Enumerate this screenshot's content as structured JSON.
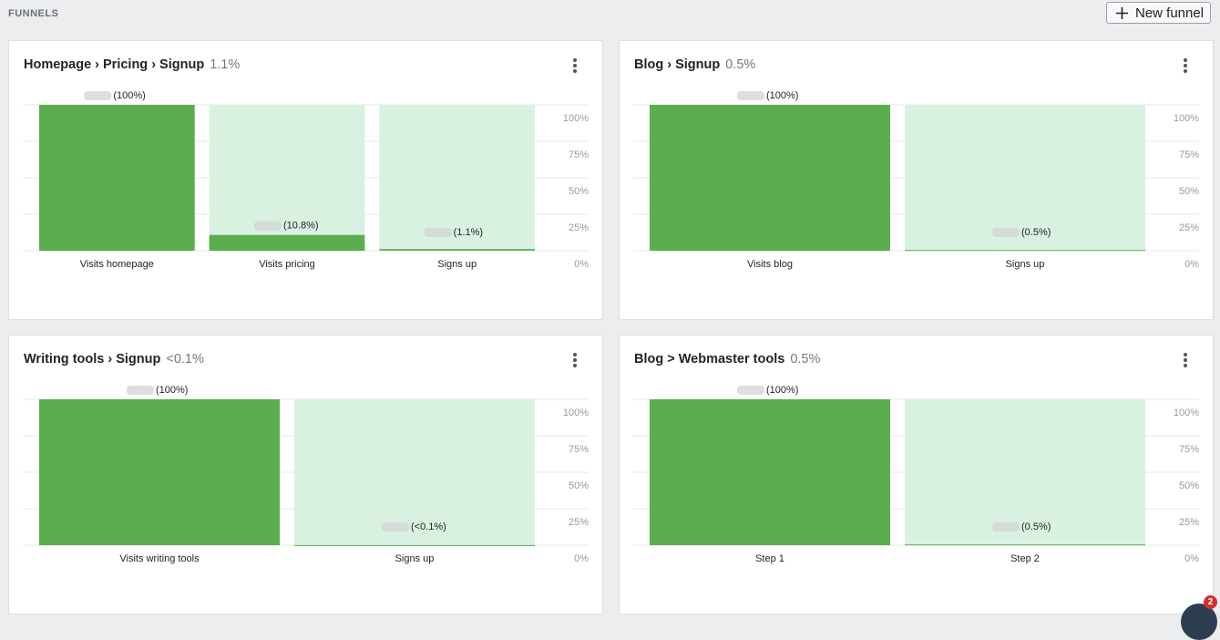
{
  "header": {
    "title": "FUNNELS",
    "button": "New funnel"
  },
  "badge": "2",
  "chart_data": [
    {
      "type": "bar",
      "title": "Homepage › Pricing › Signup",
      "subtitle": "1.1%",
      "categories": [
        "Visits homepage",
        "Visits pricing",
        "Signs up"
      ],
      "values": [
        100,
        10.8,
        1.1
      ],
      "value_labels": [
        "(100%)",
        "(10.8%)",
        "(1.1%)"
      ],
      "color": "#5aae4e",
      "track_color": "#d8f1e1",
      "ylim": [
        0,
        100
      ],
      "yticks": [
        {
          "value": 0,
          "label": "0%"
        },
        {
          "value": 25,
          "label": "25%"
        },
        {
          "value": 50,
          "label": "50%"
        },
        {
          "value": 75,
          "label": "75%"
        },
        {
          "value": 100,
          "label": "100%"
        }
      ],
      "grid": true
    },
    {
      "type": "bar",
      "title": "Blog › Signup",
      "subtitle": "0.5%",
      "categories": [
        "Visits blog",
        "Signs up"
      ],
      "values": [
        100,
        0.5
      ],
      "value_labels": [
        "(100%)",
        "(0.5%)"
      ],
      "color": "#5aae4e",
      "track_color": "#d8f1e1",
      "ylim": [
        0,
        100
      ],
      "yticks": [
        {
          "value": 0,
          "label": "0%"
        },
        {
          "value": 25,
          "label": "25%"
        },
        {
          "value": 50,
          "label": "50%"
        },
        {
          "value": 75,
          "label": "75%"
        },
        {
          "value": 100,
          "label": "100%"
        }
      ],
      "grid": true
    },
    {
      "type": "bar",
      "title": "Writing tools › Signup",
      "subtitle": "<0.1%",
      "categories": [
        "Visits writing tools",
        "Signs up"
      ],
      "values": [
        100,
        0.05
      ],
      "value_labels": [
        "(100%)",
        "(<0.1%)"
      ],
      "color": "#5aae4e",
      "track_color": "#d8f1e1",
      "ylim": [
        0,
        100
      ],
      "yticks": [
        {
          "value": 0,
          "label": "0%"
        },
        {
          "value": 25,
          "label": "25%"
        },
        {
          "value": 50,
          "label": "50%"
        },
        {
          "value": 75,
          "label": "75%"
        },
        {
          "value": 100,
          "label": "100%"
        }
      ],
      "grid": true
    },
    {
      "type": "bar",
      "title": "Blog > Webmaster tools",
      "subtitle": "0.5%",
      "categories": [
        "Step 1",
        "Step 2"
      ],
      "values": [
        100,
        0.5
      ],
      "value_labels": [
        "(100%)",
        "(0.5%)"
      ],
      "color": "#5aae4e",
      "track_color": "#d8f1e1",
      "ylim": [
        0,
        100
      ],
      "yticks": [
        {
          "value": 0,
          "label": "0%"
        },
        {
          "value": 25,
          "label": "25%"
        },
        {
          "value": 50,
          "label": "50%"
        },
        {
          "value": 75,
          "label": "75%"
        },
        {
          "value": 100,
          "label": "100%"
        }
      ],
      "grid": true
    }
  ]
}
